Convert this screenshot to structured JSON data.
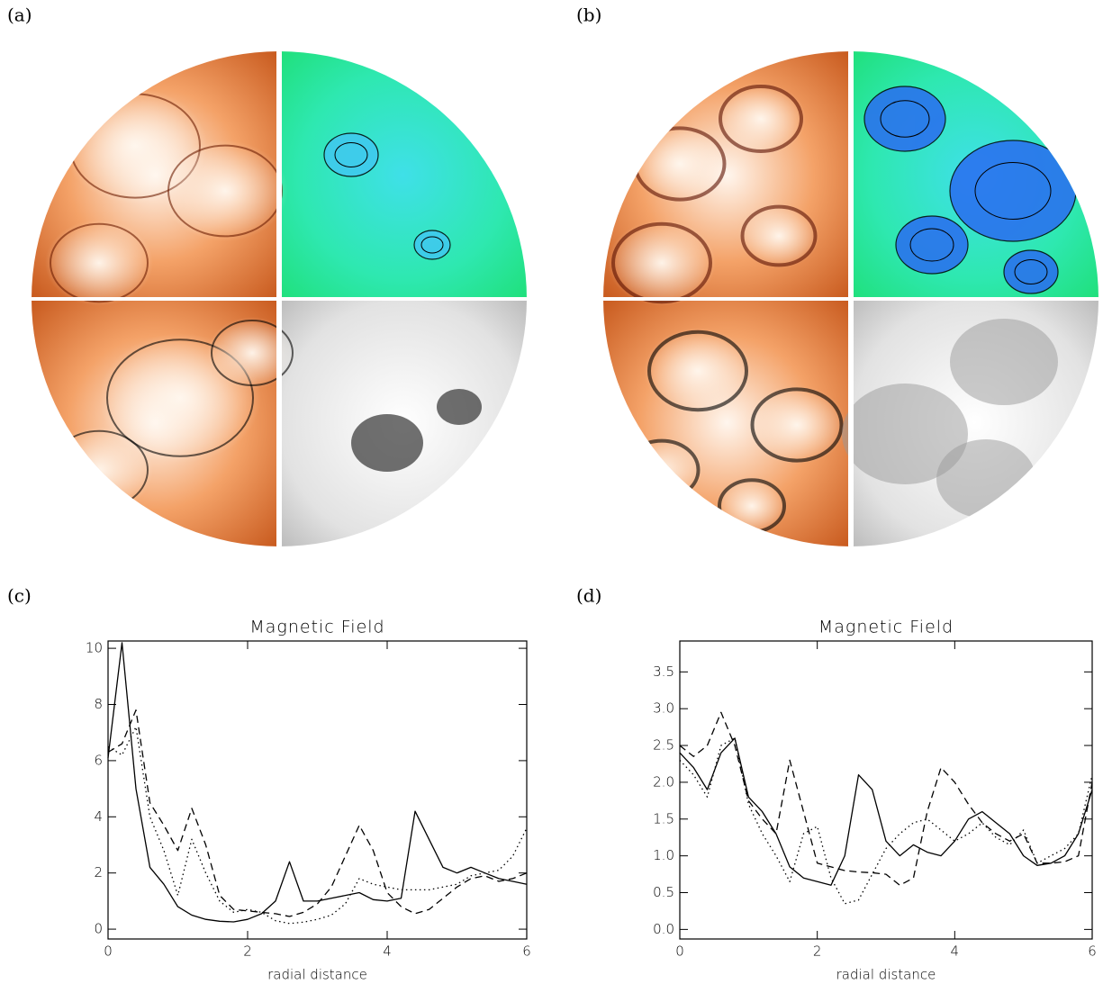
{
  "images": [
    {
      "label": "(a)"
    },
    {
      "label": "(b)"
    }
  ],
  "chart_data": [
    {
      "type": "line",
      "panel_label": "(c)",
      "title": "Magnetic Field",
      "x_label": "radial distance",
      "x": [
        0,
        0.2,
        0.4,
        0.6,
        0.8,
        1.0,
        1.2,
        1.4,
        1.6,
        1.8,
        2.0,
        2.2,
        2.4,
        2.6,
        2.8,
        3.0,
        3.2,
        3.4,
        3.6,
        3.8,
        4.0,
        4.2,
        4.4,
        4.6,
        4.8,
        5.0,
        5.2,
        5.4,
        5.6,
        5.8,
        6.0
      ],
      "xlim": [
        0,
        6
      ],
      "xticks": [
        0,
        2,
        4,
        6
      ],
      "ylim": [
        -0.35,
        10.26
      ],
      "yticks": [
        0,
        2,
        4,
        6,
        8,
        10
      ],
      "series": [
        {
          "color": "#000000",
          "line_style": "solid",
          "values": [
            6.1,
            10.2,
            5.0,
            2.2,
            1.6,
            0.8,
            0.5,
            0.35,
            0.28,
            0.26,
            0.35,
            0.55,
            1.0,
            2.4,
            1.0,
            1.0,
            1.1,
            1.2,
            1.3,
            1.05,
            1.0,
            1.1,
            4.2,
            3.2,
            2.2,
            2.0,
            2.2,
            2.0,
            1.8,
            1.7,
            1.6
          ]
        },
        {
          "color": "#000000",
          "line_style": "dashed",
          "values": [
            6.3,
            6.6,
            7.8,
            4.5,
            3.7,
            2.8,
            4.3,
            3.0,
            1.2,
            0.7,
            0.65,
            0.6,
            0.55,
            0.45,
            0.6,
            0.9,
            1.5,
            2.6,
            3.7,
            2.8,
            1.3,
            0.8,
            0.55,
            0.7,
            1.1,
            1.5,
            1.8,
            1.9,
            1.7,
            1.8,
            2.0
          ]
        },
        {
          "color": "#000000",
          "line_style": "dotted",
          "values": [
            6.5,
            6.2,
            7.2,
            4.0,
            2.8,
            1.2,
            3.2,
            2.0,
            1.0,
            0.6,
            0.7,
            0.6,
            0.3,
            0.2,
            0.25,
            0.35,
            0.5,
            0.9,
            1.8,
            1.6,
            1.5,
            1.4,
            1.4,
            1.4,
            1.5,
            1.6,
            1.9,
            2.0,
            2.1,
            2.6,
            3.6
          ]
        }
      ]
    },
    {
      "type": "line",
      "panel_label": "(d)",
      "title": "Magnetic Field",
      "x_label": "radial distance",
      "x": [
        0,
        0.2,
        0.4,
        0.6,
        0.8,
        1.0,
        1.2,
        1.4,
        1.6,
        1.8,
        2.0,
        2.2,
        2.4,
        2.6,
        2.8,
        3.0,
        3.2,
        3.4,
        3.6,
        3.8,
        4.0,
        4.2,
        4.4,
        4.6,
        4.8,
        5.0,
        5.2,
        5.4,
        5.6,
        5.8,
        6.0
      ],
      "xlim": [
        0,
        6
      ],
      "xticks": [
        0,
        2,
        4,
        6
      ],
      "ylim": [
        -0.13,
        3.92
      ],
      "yticks": [
        {
          "value": 0,
          "label": "0.0"
        },
        0.5,
        {
          "value": 1,
          "label": "1.0"
        },
        1.5,
        {
          "value": 2,
          "label": "2.0"
        },
        2.5,
        {
          "value": 3,
          "label": "3.0"
        },
        3.5
      ],
      "series": [
        {
          "color": "#000000",
          "line_style": "solid",
          "values": [
            2.4,
            2.2,
            1.9,
            2.4,
            2.6,
            1.8,
            1.6,
            1.3,
            0.85,
            0.7,
            0.65,
            0.6,
            1.0,
            2.1,
            1.9,
            1.2,
            1.0,
            1.15,
            1.05,
            1.0,
            1.2,
            1.5,
            1.6,
            1.45,
            1.3,
            1.0,
            0.87,
            0.9,
            1.0,
            1.3,
            1.9
          ]
        },
        {
          "color": "#000000",
          "line_style": "dashed",
          "values": [
            2.5,
            2.35,
            2.5,
            2.95,
            2.5,
            1.75,
            1.5,
            1.3,
            2.3,
            1.6,
            0.9,
            0.85,
            0.8,
            0.78,
            0.77,
            0.75,
            0.6,
            0.7,
            1.6,
            2.2,
            2.0,
            1.7,
            1.45,
            1.3,
            1.2,
            1.3,
            0.9,
            0.9,
            0.92,
            1.0,
            2.0
          ]
        },
        {
          "color": "#000000",
          "line_style": "dotted",
          "values": [
            2.3,
            2.1,
            1.8,
            2.5,
            2.6,
            1.7,
            1.3,
            1.0,
            0.65,
            1.3,
            1.4,
            0.7,
            0.35,
            0.4,
            0.75,
            1.1,
            1.3,
            1.45,
            1.5,
            1.35,
            1.2,
            1.3,
            1.45,
            1.25,
            1.15,
            1.35,
            0.9,
            1.0,
            1.1,
            1.3,
            2.1
          ]
        }
      ]
    }
  ]
}
